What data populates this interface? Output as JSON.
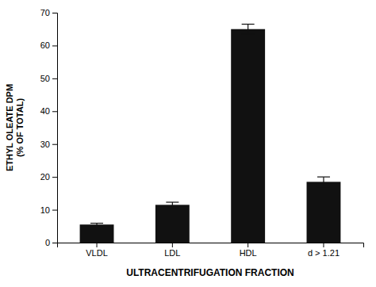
{
  "chart_data": {
    "type": "bar",
    "categories": [
      "VLDL",
      "LDL",
      "HDL",
      "d > 1.21"
    ],
    "values": [
      5.5,
      11.5,
      65.0,
      18.5
    ],
    "errors": [
      0.4,
      0.8,
      1.5,
      1.5
    ],
    "color": "#111111",
    "ylim": [
      0,
      70
    ],
    "yticks": [
      0,
      10,
      20,
      30,
      40,
      50,
      60,
      70
    ],
    "ylabel": "ETHYL OLEATE DPM\n(% OF TOTAL)",
    "xlabel": "ULTRACENTRIFUGATION FRACTION",
    "grid": false
  }
}
